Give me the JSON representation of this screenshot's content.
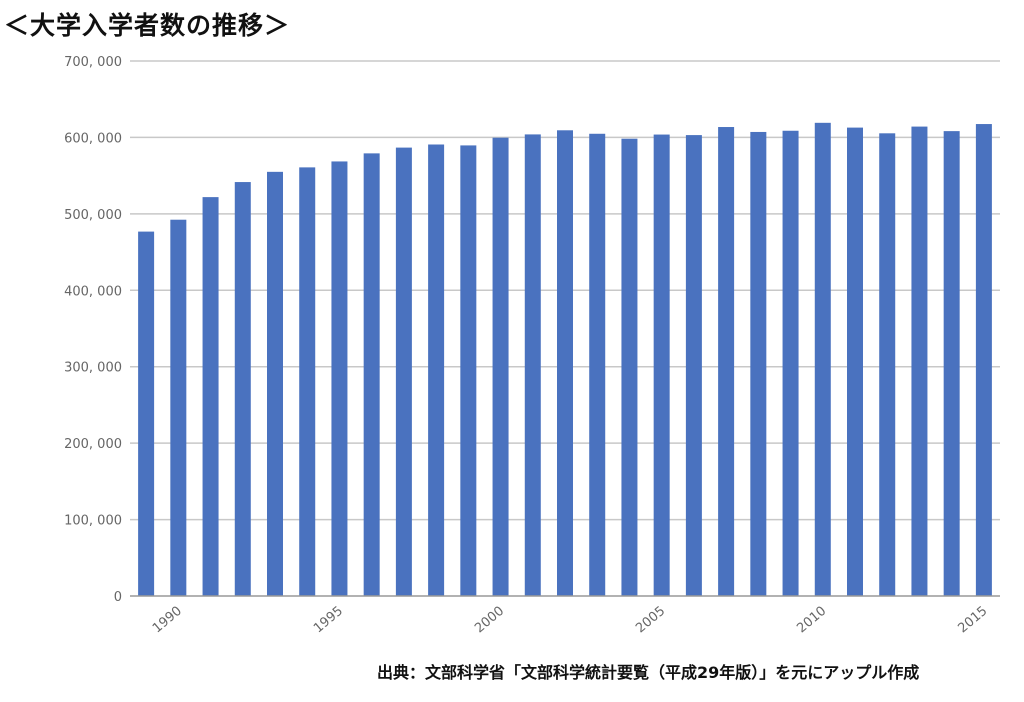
{
  "title": "＜大学入学者数の推移＞",
  "source": "出典：文部科学省「文部科学統計要覧（平成29年版）」を元にアップル作成",
  "colors": {
    "bar": "#4a72bf",
    "grid": "#c8c8c8",
    "axis": "#999999",
    "text": "#666666"
  },
  "chart_data": {
    "type": "bar",
    "title": "＜大学入学者数の推移＞",
    "xlabel": "",
    "ylabel": "",
    "categories": [
      1989,
      1990,
      1991,
      1992,
      1993,
      1994,
      1995,
      1996,
      1997,
      1998,
      1999,
      2000,
      2001,
      2002,
      2003,
      2004,
      2005,
      2006,
      2007,
      2008,
      2009,
      2010,
      2011,
      2012,
      2013,
      2014,
      2015
    ],
    "values": [
      476786,
      492340,
      521899,
      541604,
      554973,
      560815,
      568576,
      579148,
      586688,
      590743,
      589559,
      599655,
      603953,
      609337,
      604785,
      598331,
      603760,
      603054,
      613613,
      607159,
      608731,
      619119,
      612858,
      605390,
      614183,
      608247,
      617507
    ],
    "ylim": [
      0,
      700000
    ],
    "yticks": [
      0,
      100000,
      200000,
      300000,
      400000,
      500000,
      600000,
      700000
    ],
    "ytick_labels": [
      "0",
      "100, 000",
      "200, 000",
      "300, 000",
      "400, 000",
      "500, 000",
      "600, 000",
      "700, 000"
    ],
    "xtick_labels": [
      {
        "year": 1990,
        "label": "1990"
      },
      {
        "year": 1995,
        "label": "1995"
      },
      {
        "year": 2000,
        "label": "2000"
      },
      {
        "year": 2005,
        "label": "2005"
      },
      {
        "year": 2010,
        "label": "2010"
      },
      {
        "year": 2015,
        "label": "2015"
      }
    ],
    "grid": true,
    "legend": "none"
  }
}
